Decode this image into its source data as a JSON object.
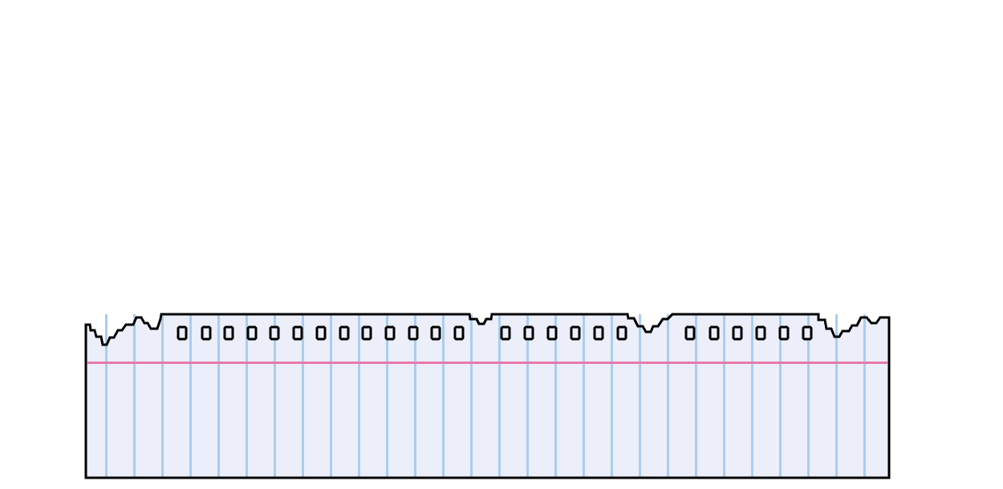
{
  "notebook_strip": {
    "background_color": "#ffffff",
    "paper_color": "#eceefa",
    "outline_color": "#000000",
    "vertical_rule_color": "#a9cdf0",
    "margin_line_color": "#e97aa9"
  }
}
